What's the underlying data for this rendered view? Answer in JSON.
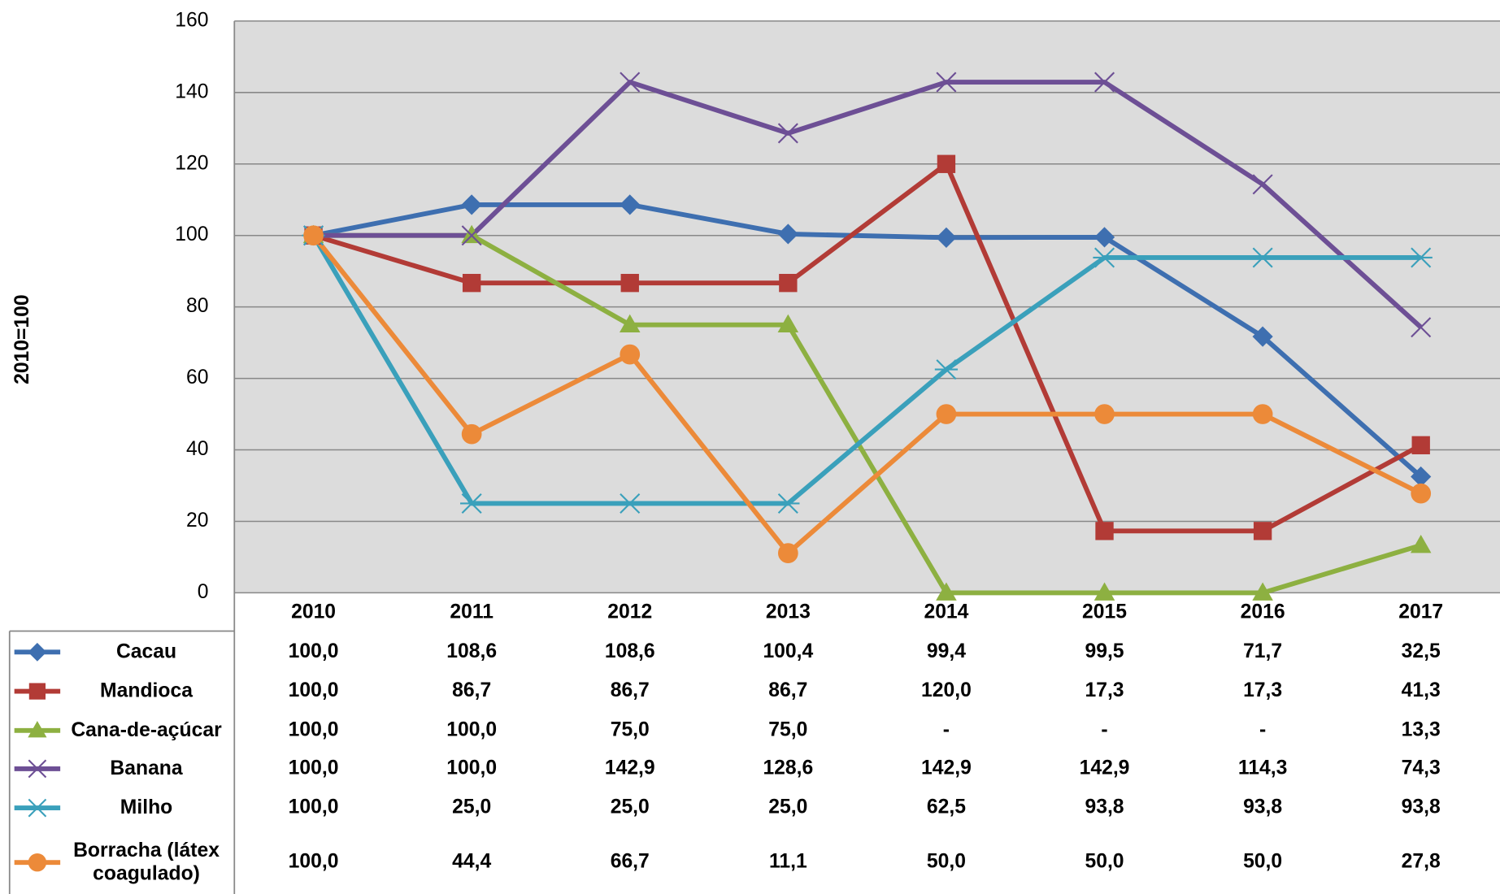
{
  "chart_data": {
    "type": "line",
    "y_label": "2010=100",
    "categories": [
      "2010",
      "2011",
      "2012",
      "2013",
      "2014",
      "2015",
      "2016",
      "2017"
    ],
    "ylim": [
      0,
      160
    ],
    "yticks": [
      0,
      20,
      40,
      60,
      80,
      100,
      120,
      140,
      160
    ],
    "grid": true,
    "series": [
      {
        "name": "Cacau",
        "color": "#3e6fb0",
        "marker": "diamond",
        "values": [
          100.0,
          108.6,
          108.6,
          100.4,
          99.4,
          99.5,
          71.7,
          32.5
        ],
        "value_labels": [
          "100,0",
          "108,6",
          "108,6",
          "100,4",
          "99,4",
          "99,5",
          "71,7",
          "32,5"
        ]
      },
      {
        "name": "Mandioca",
        "color": "#b23b36",
        "marker": "square",
        "values": [
          100.0,
          86.7,
          86.7,
          86.7,
          120.0,
          17.3,
          17.3,
          41.3
        ],
        "value_labels": [
          "100,0",
          "86,7",
          "86,7",
          "86,7",
          "120,0",
          "17,3",
          "17,3",
          "41,3"
        ]
      },
      {
        "name": "Cana-de-açúcar",
        "color": "#8db041",
        "marker": "triangle",
        "values": [
          100.0,
          100.0,
          75.0,
          75.0,
          0,
          0,
          0,
          13.3
        ],
        "value_labels": [
          "100,0",
          "100,0",
          "75,0",
          "75,0",
          "-",
          "-",
          "-",
          "13,3"
        ]
      },
      {
        "name": "Banana",
        "color": "#6d4f95",
        "marker": "x",
        "values": [
          100.0,
          100.0,
          142.9,
          128.6,
          142.9,
          142.9,
          114.3,
          74.3
        ],
        "value_labels": [
          "100,0",
          "100,0",
          "142,9",
          "128,6",
          "142,9",
          "142,9",
          "114,3",
          "74,3"
        ]
      },
      {
        "name": "Milho",
        "color": "#3aa0bb",
        "marker": "star",
        "values": [
          100.0,
          25.0,
          25.0,
          25.0,
          62.5,
          93.8,
          93.8,
          93.8
        ],
        "value_labels": [
          "100,0",
          "25,0",
          "25,0",
          "25,0",
          "62,5",
          "93,8",
          "93,8",
          "93,8"
        ]
      },
      {
        "name": "Borracha (látex coagulado)",
        "color": "#ec8a39",
        "marker": "circle",
        "values": [
          100.0,
          44.4,
          66.7,
          11.1,
          50.0,
          50.0,
          50.0,
          27.8
        ],
        "value_labels": [
          "100,0",
          "44,4",
          "66,7",
          "11,1",
          "50,0",
          "50,0",
          "50,0",
          "27,8"
        ]
      }
    ]
  }
}
